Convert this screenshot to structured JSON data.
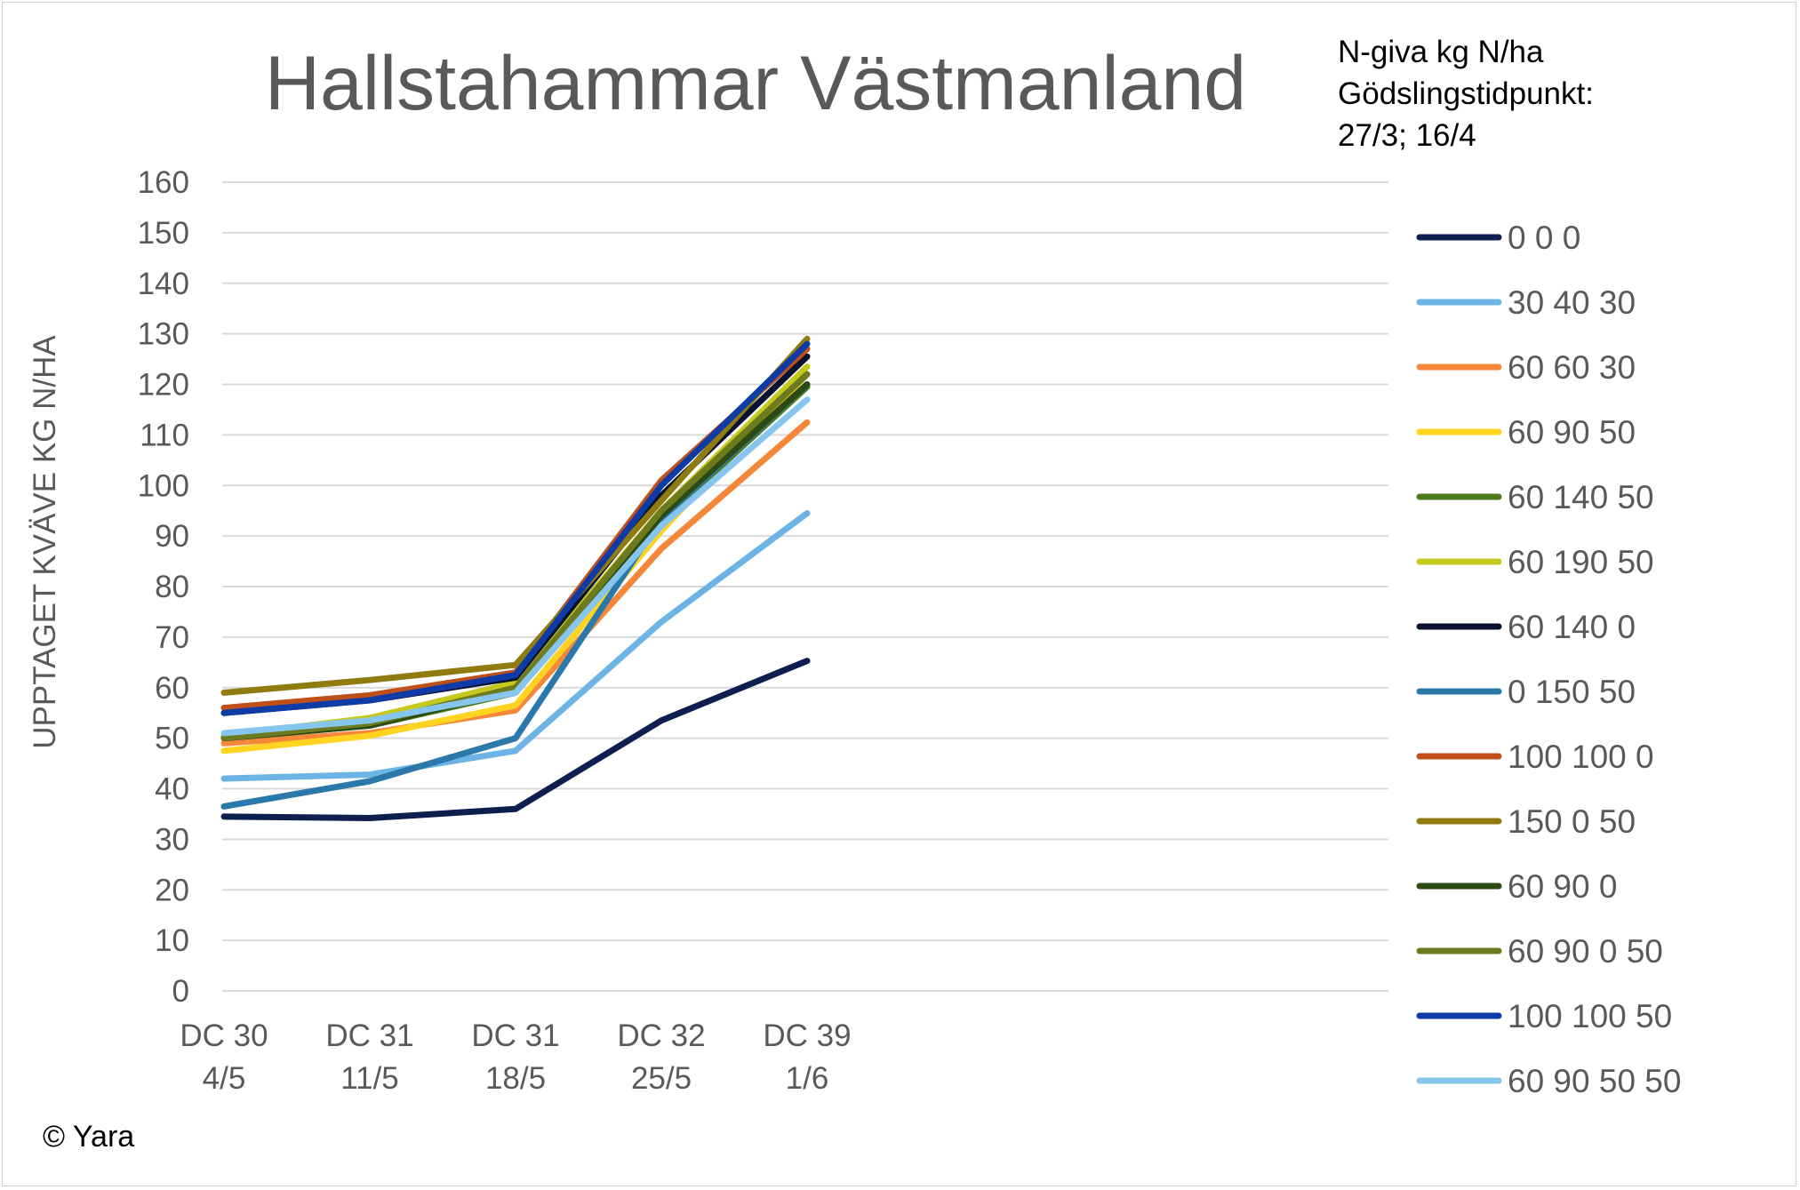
{
  "chart_data": {
    "type": "line",
    "title": "Hallstahammar Västmanland",
    "ylabel": "UPPTAGET KVÄVE KG N/HA",
    "xlabel": "",
    "ylim": [
      0,
      160
    ],
    "y_ticks": [
      0,
      10,
      20,
      30,
      40,
      50,
      60,
      70,
      80,
      90,
      100,
      110,
      120,
      130,
      140,
      150,
      160
    ],
    "gridlines": true,
    "legend_title": [
      "N-giva kg N/ha",
      "Gödslingstidpunkt:",
      "27/3; 16/4"
    ],
    "legend_position": "right",
    "categories": [
      [
        "DC 30",
        "4/5"
      ],
      [
        "DC 31",
        "11/5"
      ],
      [
        "DC 31",
        "18/5"
      ],
      [
        "DC 32",
        "25/5"
      ],
      [
        "DC 39",
        "1/6"
      ]
    ],
    "series": [
      {
        "name": "0 0 0",
        "color": "#0E1F4F",
        "values": [
          34.5,
          34.2,
          36,
          53.5,
          65.3
        ]
      },
      {
        "name": "30 40 30",
        "color": "#6CB4E4",
        "values": [
          42,
          42.8,
          47.5,
          73,
          94.5
        ]
      },
      {
        "name": "60 60 30",
        "color": "#F4873A",
        "values": [
          49,
          51,
          55.5,
          87.5,
          112.5
        ]
      },
      {
        "name": "60 90 50",
        "color": "#FFD320",
        "values": [
          47.5,
          50.5,
          56.5,
          91,
          122
        ]
      },
      {
        "name": "60 140 50",
        "color": "#4C7A1D",
        "values": [
          50,
          52.5,
          59,
          93,
          119.5
        ]
      },
      {
        "name": "60 190 50",
        "color": "#C5C91E",
        "values": [
          50.5,
          54,
          61,
          95,
          123.5
        ]
      },
      {
        "name": "60 140 0",
        "color": "#0A1230",
        "values": [
          55,
          57.5,
          62,
          98,
          125.5
        ]
      },
      {
        "name": "0 150 50",
        "color": "#2A79AA",
        "values": [
          36.5,
          41.5,
          50,
          93.5,
          120
        ]
      },
      {
        "name": "100 100 0",
        "color": "#C0501A",
        "values": [
          56,
          58.5,
          63,
          101,
          127
        ]
      },
      {
        "name": "150 0 50",
        "color": "#8F7B10",
        "values": [
          59,
          61.5,
          64.5,
          97,
          129
        ]
      },
      {
        "name": "60 90 0",
        "color": "#2B4A14",
        "values": [
          50,
          52.5,
          59.5,
          94,
          120
        ]
      },
      {
        "name": "60 90 0 50",
        "color": "#6E7A1E",
        "values": [
          50,
          53,
          60,
          95,
          122
        ]
      },
      {
        "name": "100 100 50",
        "color": "#0F3BA6",
        "values": [
          55,
          57.5,
          62.5,
          100,
          128
        ]
      },
      {
        "name": "60 90 50 50",
        "color": "#86C5EE",
        "values": [
          51,
          53.5,
          59,
          92,
          117
        ]
      }
    ]
  },
  "copyright": "© Yara",
  "colors": {
    "gridline": "#D9D9D9",
    "text": "#595959"
  }
}
